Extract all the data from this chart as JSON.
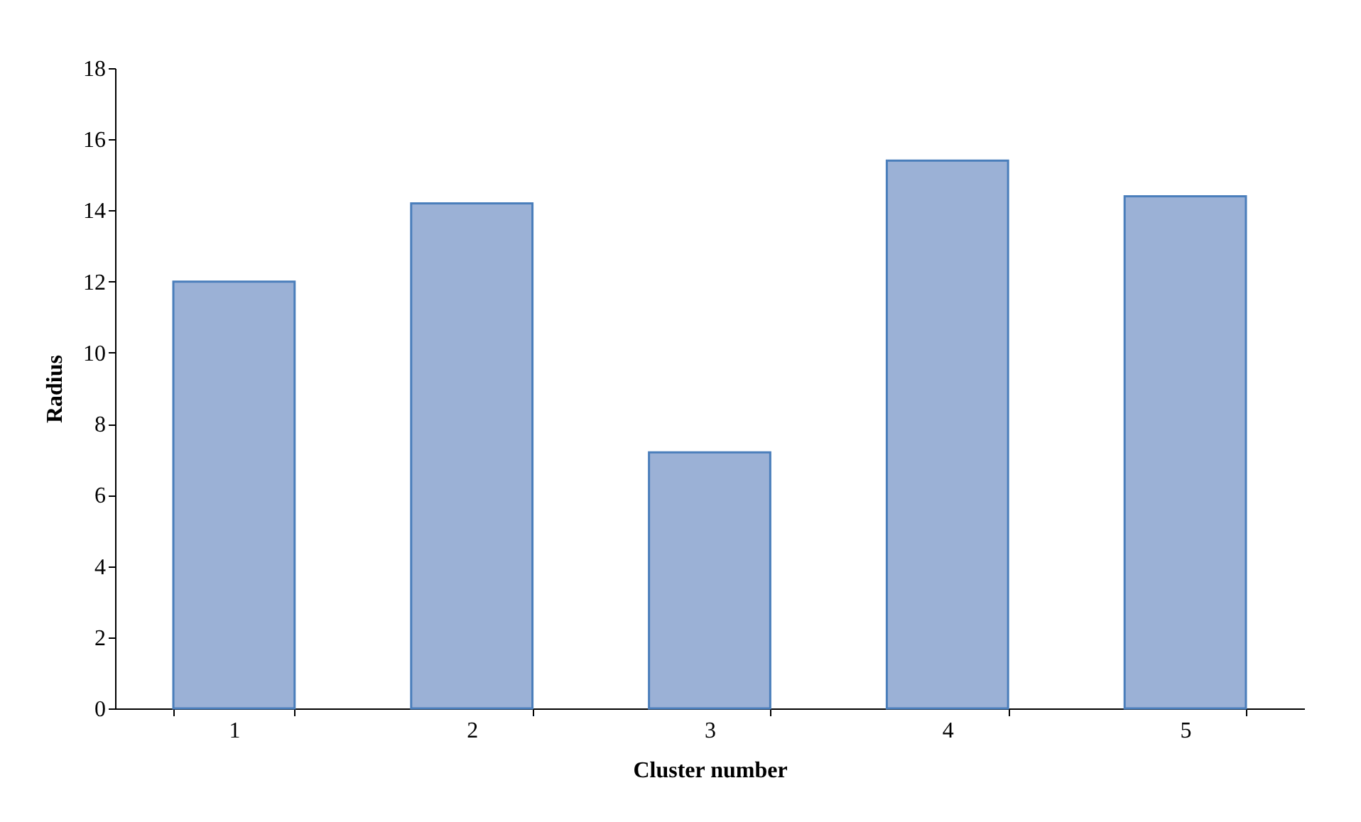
{
  "chart_data": {
    "type": "bar",
    "xlabel": "Cluster number",
    "ylabel": "Radius",
    "categories": [
      "1",
      "2",
      "3",
      "4",
      "5"
    ],
    "values": [
      12.0,
      14.2,
      7.2,
      15.4,
      14.4
    ],
    "color": "#9bb1d6",
    "ylim": [
      0,
      18
    ],
    "yticks": [
      0,
      2,
      4,
      6,
      8,
      10,
      12,
      14,
      16,
      18
    ],
    "grid": false
  }
}
